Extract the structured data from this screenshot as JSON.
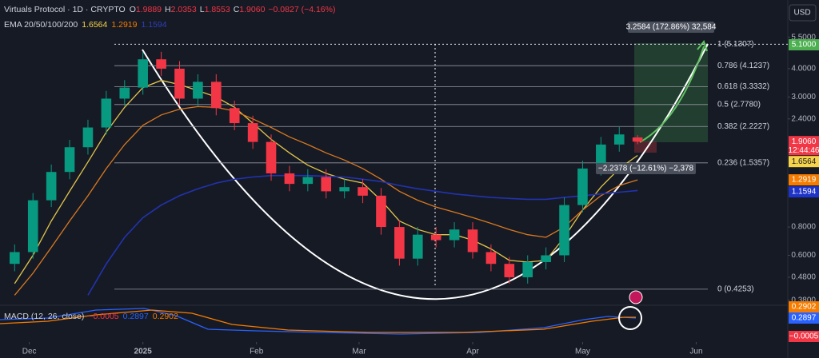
{
  "header": {
    "symbol": "Virtuals Protocol · 1D · CRYPTO",
    "ohlc": [
      [
        "O",
        "1.9889"
      ],
      [
        "H",
        "2.0353"
      ],
      [
        "L",
        "1.8553"
      ],
      [
        "C",
        "1.9060"
      ]
    ],
    "change": "−0.0827 (−4.16%)",
    "currency": "USD",
    "countdown": "12:44:46"
  },
  "indicators": {
    "ema": {
      "name": "EMA 20/50/100/200",
      "values": [
        {
          "text": "1.6564",
          "color": "#f7d34a"
        },
        {
          "text": "1.2919",
          "color": "#f57c00"
        },
        {
          "text": "1.1594",
          "color": "#2d3fb8"
        }
      ]
    },
    "macd": {
      "name": "MACD (12, 26, close)",
      "values": [
        {
          "text": "−0.0005",
          "color": "#f23645"
        },
        {
          "text": "0.2897",
          "color": "#2962ff"
        },
        {
          "text": "0.2902",
          "color": "#f57c00"
        }
      ],
      "axis_tags": [
        {
          "text": "0.2902",
          "color": "#f57c00"
        },
        {
          "text": "0.2897",
          "color": "#2962ff"
        },
        {
          "text": "−0.0005",
          "color": "#f23645"
        }
      ]
    }
  },
  "chart_data": {
    "type": "candlestick",
    "log_scale": true,
    "up_color": "#089981",
    "down_color": "#f23645",
    "x": [
      -35,
      -30,
      -25,
      -20,
      -15,
      -10,
      -5,
      0,
      5,
      10,
      15,
      20,
      25,
      30,
      35,
      40,
      45,
      50,
      55,
      60,
      65,
      70,
      75,
      80,
      85,
      90,
      95,
      100,
      105,
      110,
      115,
      120,
      125,
      130,
      135
    ],
    "open": [
      0.55,
      0.62,
      1.05,
      1.4,
      1.8,
      2.2,
      2.95,
      3.3,
      4.4,
      4.0,
      2.95,
      3.5,
      2.68,
      2.3,
      1.9,
      1.38,
      1.24,
      1.33,
      1.15,
      1.2,
      1.1,
      0.8,
      0.58,
      0.74,
      0.7,
      0.78,
      0.62,
      0.55,
      0.48,
      0.56,
      0.6,
      1.0,
      1.45,
      1.85,
      1.9889
    ],
    "high": [
      0.67,
      1.13,
      1.51,
      1.94,
      2.38,
      3.19,
      3.56,
      4.75,
      4.75,
      4.32,
      3.78,
      3.78,
      2.89,
      2.48,
      2.05,
      1.49,
      1.44,
      1.44,
      1.3,
      1.3,
      1.19,
      0.86,
      0.8,
      0.8,
      0.84,
      0.84,
      0.67,
      0.59,
      0.6,
      0.65,
      1.08,
      1.57,
      2.0,
      2.21,
      2.0353
    ],
    "low": [
      0.51,
      0.58,
      0.98,
      1.3,
      1.67,
      2.05,
      2.74,
      3.07,
      3.72,
      2.74,
      2.74,
      2.49,
      2.14,
      1.77,
      1.28,
      1.15,
      1.15,
      1.07,
      1.07,
      1.02,
      0.74,
      0.54,
      0.54,
      0.65,
      0.65,
      0.58,
      0.51,
      0.45,
      0.45,
      0.52,
      0.56,
      0.93,
      1.35,
      1.72,
      1.8553
    ],
    "close": [
      0.62,
      1.05,
      1.4,
      1.8,
      2.2,
      2.95,
      3.3,
      4.4,
      4.0,
      2.95,
      3.5,
      2.68,
      2.3,
      1.9,
      1.38,
      1.24,
      1.33,
      1.15,
      1.2,
      1.1,
      0.8,
      0.58,
      0.74,
      0.7,
      0.78,
      0.62,
      0.55,
      0.48,
      0.56,
      0.6,
      1.0,
      1.45,
      1.85,
      2.05,
      1.906
    ],
    "series": [
      {
        "color": "#e2c54a",
        "values": [
          0.45,
          0.6,
          0.85,
          1.15,
          1.55,
          2.1,
          2.7,
          3.3,
          3.55,
          3.4,
          3.2,
          3.0,
          2.7,
          2.3,
          1.95,
          1.7,
          1.5,
          1.38,
          1.3,
          1.25,
          1.05,
          0.85,
          0.78,
          0.74,
          0.74,
          0.7,
          0.64,
          0.57,
          0.56,
          0.57,
          0.72,
          0.95,
          1.2,
          1.45,
          1.6564
        ]
      },
      {
        "color": "#d9791f",
        "values": [
          0.4,
          0.5,
          0.65,
          0.85,
          1.1,
          1.45,
          1.85,
          2.25,
          2.5,
          2.65,
          2.72,
          2.7,
          2.6,
          2.4,
          2.2,
          2.0,
          1.85,
          1.7,
          1.58,
          1.45,
          1.3,
          1.15,
          1.05,
          0.98,
          0.93,
          0.88,
          0.83,
          0.78,
          0.74,
          0.72,
          0.8,
          0.95,
          1.1,
          1.22,
          1.2919
        ]
      },
      {
        "color": "#2233b0",
        "values": [
          null,
          null,
          null,
          null,
          0.4,
          0.55,
          0.72,
          0.88,
          1.0,
          1.1,
          1.18,
          1.25,
          1.3,
          1.33,
          1.35,
          1.35,
          1.35,
          1.34,
          1.33,
          1.3,
          1.27,
          1.22,
          1.18,
          1.15,
          1.12,
          1.1,
          1.08,
          1.07,
          1.06,
          1.06,
          1.08,
          1.1,
          1.12,
          1.14,
          1.1594
        ]
      }
    ],
    "xlim": [
      -39,
      176
    ],
    "ylim": [
      0.367,
      8.04
    ],
    "xticks": [
      {
        "value": -31,
        "label": "Dec"
      },
      {
        "value": 0,
        "label": "2025"
      },
      {
        "value": 31,
        "label": "Feb"
      },
      {
        "value": 59,
        "label": "Mar"
      },
      {
        "value": 90,
        "label": "Apr"
      },
      {
        "value": 120,
        "label": "May"
      },
      {
        "value": 151,
        "label": "Jun"
      }
    ],
    "yticks": [
      {
        "value": 5.5,
        "label": "5.5000"
      },
      {
        "value": 4,
        "label": "4.0000"
      },
      {
        "value": 3,
        "label": "3.0000"
      },
      {
        "value": 2.4,
        "label": "2.4000"
      },
      {
        "value": 0.8,
        "label": "0.8000"
      },
      {
        "value": 0.6,
        "label": "0.6000"
      },
      {
        "value": 0.48,
        "label": "0.4800"
      },
      {
        "value": 0.38,
        "label": "0.3800"
      }
    ],
    "fib_levels": [
      {
        "value": 5.1307,
        "label": "1 (5.1307)"
      },
      {
        "value": 4.1237,
        "label": "0.786 (4.1237)"
      },
      {
        "value": 3.3332,
        "label": "0.618 (3.3332)"
      },
      {
        "value": 2.778,
        "label": "0.5 (2.7780)"
      },
      {
        "value": 2.2227,
        "label": "0.382 (2.2227)"
      },
      {
        "value": 1.5357,
        "label": "0.236 (1.5357)"
      },
      {
        "value": 0.4253,
        "label": "0 (0.4253)"
      }
    ],
    "price_tags": [
      {
        "value": 5.1,
        "label": "5.1000",
        "color": "#4caf50"
      },
      {
        "value": 1.906,
        "label": "1.9060",
        "color": "#f23645"
      },
      {
        "value": 1.6564,
        "label": "1.6564",
        "color": "#f7d34a"
      },
      {
        "value": 1.2919,
        "label": "1.2919",
        "color": "#f57c00"
      },
      {
        "value": 1.1594,
        "label": "1.1594",
        "color": "#1e33c8"
      }
    ],
    "annotations": [
      "3.2584 (172.86%) 32,584",
      "−2.2378 (−12.61%) −2,378"
    ]
  }
}
